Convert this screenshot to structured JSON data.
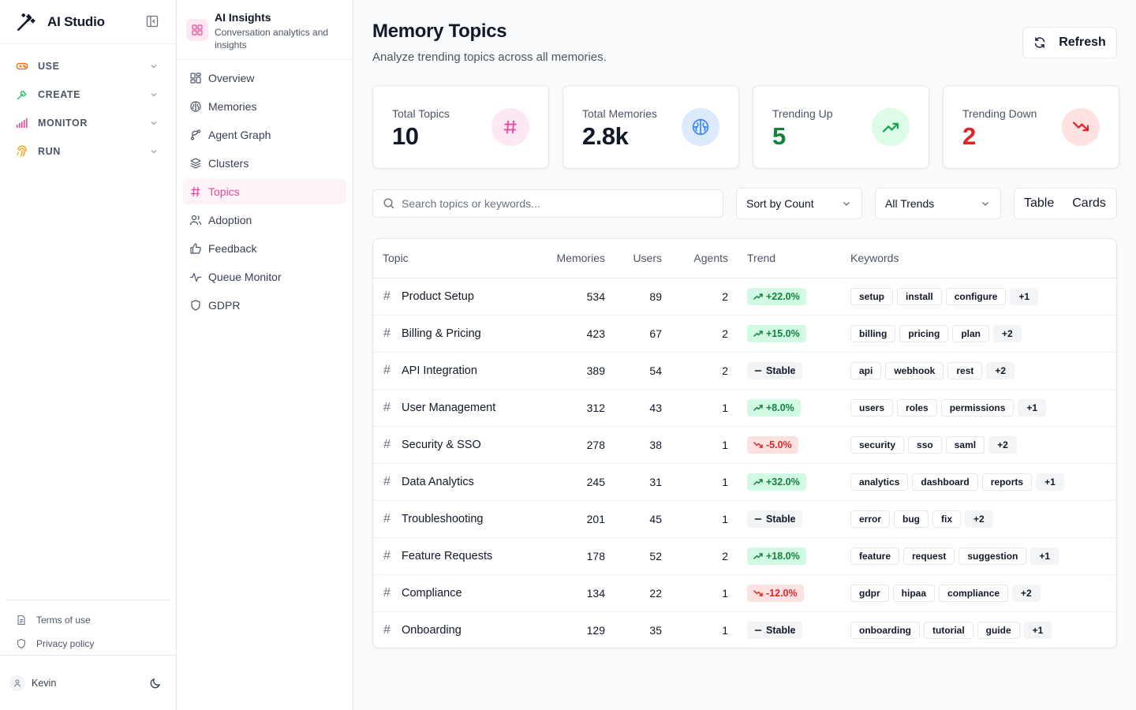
{
  "app": {
    "name": "AI Studio"
  },
  "sidebar": {
    "groups": [
      {
        "label": "USE",
        "color": "#f97316"
      },
      {
        "label": "CREATE",
        "color": "#22c55e"
      },
      {
        "label": "MONITOR",
        "color": "#ec4899"
      },
      {
        "label": "RUN",
        "color": "#f59e0b"
      }
    ],
    "footer_links": [
      "Terms of use",
      "Privacy policy"
    ],
    "user": "Kevin"
  },
  "subnav": {
    "title": "AI Insights",
    "description": "Conversation analytics and insights",
    "items": [
      {
        "label": "Overview",
        "icon": "grid-icon"
      },
      {
        "label": "Memories",
        "icon": "brain-icon"
      },
      {
        "label": "Agent Graph",
        "icon": "graph-icon"
      },
      {
        "label": "Clusters",
        "icon": "layers-icon"
      },
      {
        "label": "Topics",
        "icon": "hash-icon",
        "active": true
      },
      {
        "label": "Adoption",
        "icon": "users-icon"
      },
      {
        "label": "Feedback",
        "icon": "thumbs-up-icon"
      },
      {
        "label": "Queue Monitor",
        "icon": "activity-icon"
      },
      {
        "label": "GDPR",
        "icon": "shield-icon"
      }
    ]
  },
  "header": {
    "title": "Memory Topics",
    "subtitle": "Analyze trending topics across all memories.",
    "refresh_label": "Refresh"
  },
  "stats": [
    {
      "label": "Total Topics",
      "value": "10",
      "value_color": "#111827",
      "icon": "hash-icon",
      "icon_bg": "#fce7f3",
      "icon_color": "#ec4899"
    },
    {
      "label": "Total Memories",
      "value": "2.8k",
      "value_color": "#111827",
      "icon": "brain-icon",
      "icon_bg": "#dbeafe",
      "icon_color": "#3b82f6"
    },
    {
      "label": "Trending Up",
      "value": "5",
      "value_color": "#15803d",
      "icon": "trending-up-icon",
      "icon_bg": "#dcfce7",
      "icon_color": "#16a34a"
    },
    {
      "label": "Trending Down",
      "value": "2",
      "value_color": "#dc2626",
      "icon": "trending-down-icon",
      "icon_bg": "#fee2e2",
      "icon_color": "#dc2626"
    }
  ],
  "filters": {
    "search_placeholder": "Search topics or keywords...",
    "sort_value": "Sort by Count",
    "trend_value": "All Trends",
    "view_options": [
      "Table",
      "Cards"
    ]
  },
  "table": {
    "columns": [
      "Topic",
      "Memories",
      "Users",
      "Agents",
      "Trend",
      "Keywords"
    ],
    "rows": [
      {
        "topic": "Product Setup",
        "memories": "534",
        "users": "89",
        "agents": "2",
        "trend": "+22.0%",
        "trend_dir": "up",
        "keywords": [
          "setup",
          "install",
          "configure"
        ],
        "more": "+1"
      },
      {
        "topic": "Billing & Pricing",
        "memories": "423",
        "users": "67",
        "agents": "2",
        "trend": "+15.0%",
        "trend_dir": "up",
        "keywords": [
          "billing",
          "pricing",
          "plan"
        ],
        "more": "+2"
      },
      {
        "topic": "API Integration",
        "memories": "389",
        "users": "54",
        "agents": "2",
        "trend": "Stable",
        "trend_dir": "stable",
        "keywords": [
          "api",
          "webhook",
          "rest"
        ],
        "more": "+2"
      },
      {
        "topic": "User Management",
        "memories": "312",
        "users": "43",
        "agents": "1",
        "trend": "+8.0%",
        "trend_dir": "up",
        "keywords": [
          "users",
          "roles",
          "permissions"
        ],
        "more": "+1"
      },
      {
        "topic": "Security & SSO",
        "memories": "278",
        "users": "38",
        "agents": "1",
        "trend": "-5.0%",
        "trend_dir": "down",
        "keywords": [
          "security",
          "sso",
          "saml"
        ],
        "more": "+2"
      },
      {
        "topic": "Data Analytics",
        "memories": "245",
        "users": "31",
        "agents": "1",
        "trend": "+32.0%",
        "trend_dir": "up",
        "keywords": [
          "analytics",
          "dashboard",
          "reports"
        ],
        "more": "+1"
      },
      {
        "topic": "Troubleshooting",
        "memories": "201",
        "users": "45",
        "agents": "1",
        "trend": "Stable",
        "trend_dir": "stable",
        "keywords": [
          "error",
          "bug",
          "fix"
        ],
        "more": "+2"
      },
      {
        "topic": "Feature Requests",
        "memories": "178",
        "users": "52",
        "agents": "2",
        "trend": "+18.0%",
        "trend_dir": "up",
        "keywords": [
          "feature",
          "request",
          "suggestion"
        ],
        "more": "+1"
      },
      {
        "topic": "Compliance",
        "memories": "134",
        "users": "22",
        "agents": "1",
        "trend": "-12.0%",
        "trend_dir": "down",
        "keywords": [
          "gdpr",
          "hipaa",
          "compliance"
        ],
        "more": "+2"
      },
      {
        "topic": "Onboarding",
        "memories": "129",
        "users": "35",
        "agents": "1",
        "trend": "Stable",
        "trend_dir": "stable",
        "keywords": [
          "onboarding",
          "tutorial",
          "guide"
        ],
        "more": "+1"
      }
    ]
  }
}
